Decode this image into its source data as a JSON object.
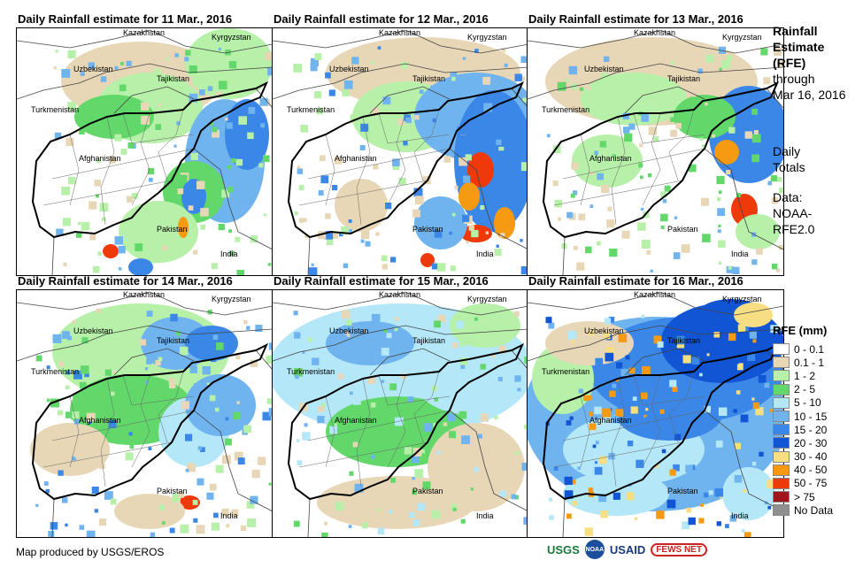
{
  "panels": [
    {
      "title": "Daily Rainfall estimate for 11 Mar., 2016",
      "pattern": "day11"
    },
    {
      "title": "Daily Rainfall estimate for 12 Mar., 2016",
      "pattern": "day12"
    },
    {
      "title": "Daily Rainfall estimate for 13 Mar., 2016",
      "pattern": "day13"
    },
    {
      "title": "Daily Rainfall estimate for 14 Mar., 2016",
      "pattern": "day14"
    },
    {
      "title": "Daily Rainfall estimate for 15 Mar., 2016",
      "pattern": "day15"
    },
    {
      "title": "Daily Rainfall estimate for 16 Mar., 2016",
      "pattern": "day16"
    }
  ],
  "country_labels": [
    "Kazakhstan",
    "Kyrgyzstan",
    "Uzbekistan",
    "Tajikistan",
    "Turkmenistan",
    "Afghanistan",
    "Pakistan",
    "India"
  ],
  "sidebar": {
    "title_lines": [
      "Rainfall",
      "Estimate",
      "(RFE)"
    ],
    "through_lines": [
      "through",
      "Mar 16, 2016"
    ],
    "totals_lines": [
      "Daily",
      "Totals"
    ],
    "data_lines": [
      "Data:",
      "NOAA-",
      "RFE2.0"
    ]
  },
  "legend": {
    "title": "RFE (mm)",
    "items": [
      {
        "label": "0 - 0.1",
        "color": "#ffffff"
      },
      {
        "label": "0.1 - 1",
        "color": "#e8d7b6"
      },
      {
        "label": "1 - 2",
        "color": "#b7f0a8"
      },
      {
        "label": "2 - 5",
        "color": "#63d86a"
      },
      {
        "label": "5 - 10",
        "color": "#b4e8f8"
      },
      {
        "label": "10 - 15",
        "color": "#6fb4ef"
      },
      {
        "label": "15 - 20",
        "color": "#3b87e8"
      },
      {
        "label": "20 - 30",
        "color": "#1155d4"
      },
      {
        "label": "30 - 40",
        "color": "#f8de82"
      },
      {
        "label": "40 - 50",
        "color": "#f59a11"
      },
      {
        "label": "50 - 75",
        "color": "#ee3a0b"
      },
      {
        "label": "> 75",
        "color": "#a1141a"
      },
      {
        "label": "No Data",
        "color": "#909090"
      }
    ]
  },
  "credit": "Map produced by USGS/EROS",
  "logos": [
    "USGS",
    "NOAA",
    "USAID",
    "FEWS NET"
  ]
}
